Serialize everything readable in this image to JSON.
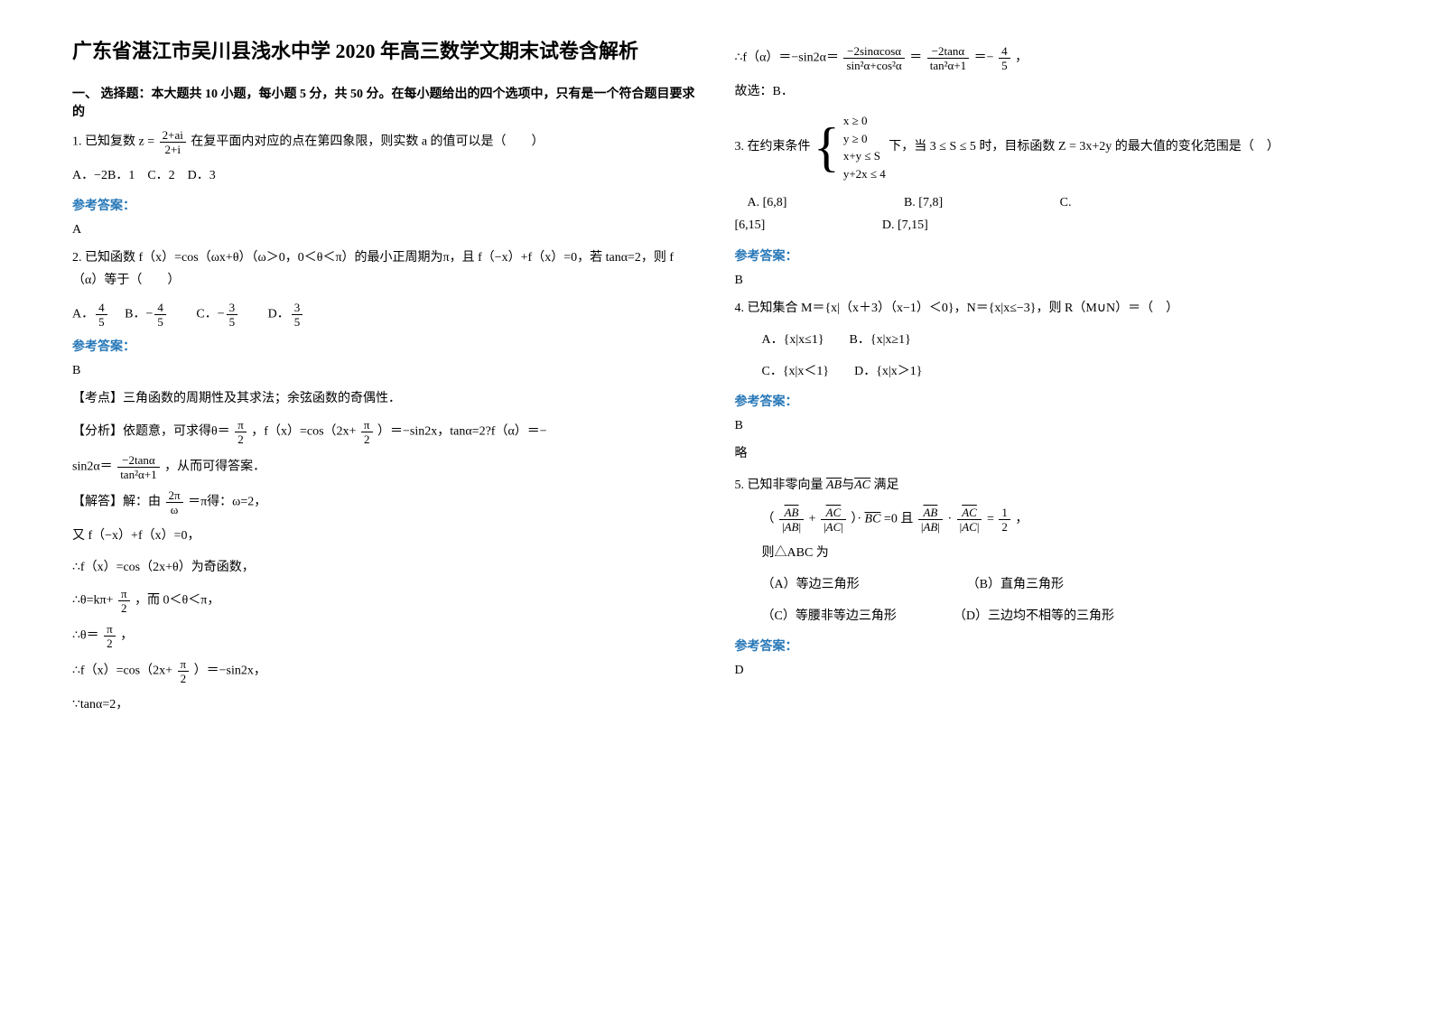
{
  "title": "广东省湛江市吴川县浅水中学 2020 年高三数学文期末试卷含解析",
  "section1_header": "一、 选择题：本大题共 10 小题，每小题 5 分，共 50 分。在每小题给出的四个选项中，只有是一个符合题目要求的",
  "q1": {
    "stem_a": "1. 已知复数",
    "frac_n": "2+ai",
    "frac_d": "2+i",
    "stem_b": "在复平面内对应的点在第四象限，则实数 a 的值可以是（　　）",
    "opts": "A．−2B．1　C．2　D．3",
    "ref": "参考答案：",
    "ans": "A"
  },
  "q2": {
    "stem": "2. 已知函数 f（x）=cos（ωx+θ）（ω＞0，0＜θ＜π）的最小正周期为π，且 f（−x）+f（x）=0，若 tanα=2，则 f（α）等于（　　）",
    "a_n": "4",
    "a_d": "5",
    "b_n": "4",
    "b_d": "5",
    "c_n": "3",
    "c_d": "5",
    "d_n": "3",
    "d_d": "5",
    "ref": "参考答案：",
    "ans": "B",
    "kp": "【考点】三角函数的周期性及其求法；余弦函数的奇偶性．",
    "fx1": "【分析】依题意，可求得θ＝",
    "pi": "π",
    "two": "2",
    "fx2": "，f（x）=cos（2x+",
    "fx3": "）＝−sin2x，tanα=2?f（α）＝−",
    "sin2a_a": "sin2α＝",
    "tan_n": "−2tanα",
    "tan_d": "tan²α+1",
    "sin2a_b": "，从而可得答案．",
    "jd": "【解答】解：由",
    "w_n": "2π",
    "w_d": "ω",
    "jd2": "＝π得：ω=2，",
    "l2": "又 f（−x）+f（x）=0，",
    "l3": "∴f（x）=cos（2x+θ）为奇函数，",
    "l4a": "∴θ=kπ+",
    "l4b": "，而 0＜θ＜π，",
    "l5a": "∴θ＝",
    "l5b": "，",
    "l6a": "∴f（x）=cos（2x+",
    "l6b": "）＝−sin2x，",
    "l7": "∵tanα=2，"
  },
  "q2r": {
    "r1a": "∴f（α）＝−sin2α＝",
    "r1_n1": "−2sinαcosα",
    "r1_d1": "sin²α+cos²α",
    "eq": "＝",
    "r1_n2": "−2tanα",
    "r1_d2": "tan²α+1",
    "r1_n3": "4",
    "r1_d3": "5",
    "r1b": "，",
    "r2": "故选：B．"
  },
  "q3": {
    "stem_a": "3. 在约束条件",
    "c1": "x ≥ 0",
    "c2": "y ≥ 0",
    "c3": "x+y ≤ S",
    "c4": "y+2x ≤ 4",
    "stem_b": "下，当",
    "range": "3 ≤ S ≤ 5",
    "stem_c": "时，目标函数",
    "z": "Z = 3x+2y",
    "stem_d": "的最大值的变化范围是（　）",
    "oa": "[6,8]",
    "ob": "[7,8]",
    "oc": "[6,15]",
    "od": "[7,15]",
    "a": "A.",
    "b": "B.",
    "c": "C.",
    "d": "D.",
    "ref": "参考答案：",
    "ans": "B"
  },
  "q4": {
    "stem": "4. 已知集合 M＝{x|（x＋3）（x−1）＜0}，N＝{x|x≤−3}，则 R（M∪N）＝（　）",
    "oa": "A．{x|x≤1}　　B．{x|x≥1}",
    "oc": "C．{x|x＜1}　　D．{x|x＞1}",
    "ref": "参考答案：",
    "ans": "B",
    "brief": "略"
  },
  "q5": {
    "stem_a": "5. 已知非零向量",
    "ab": "AB",
    "ac": "AC",
    "bc": "BC",
    "yu": "与",
    "stem_b": "满足",
    "l1a": "（",
    "plus": "+",
    "l1b": "）·",
    "l1c": "=0 且",
    "dot": "·",
    "l1d": "=",
    "half_n": "1",
    "half_d": "2",
    "l1e": "，",
    "l2": "则△ABC 为",
    "oa": "（A）等边三角形",
    "ob": "（B）直角三角形",
    "oc": "（C）等腰非等边三角形",
    "od": "（D）三边均不相等的三角形",
    "ref": "参考答案：",
    "ans": "D"
  }
}
